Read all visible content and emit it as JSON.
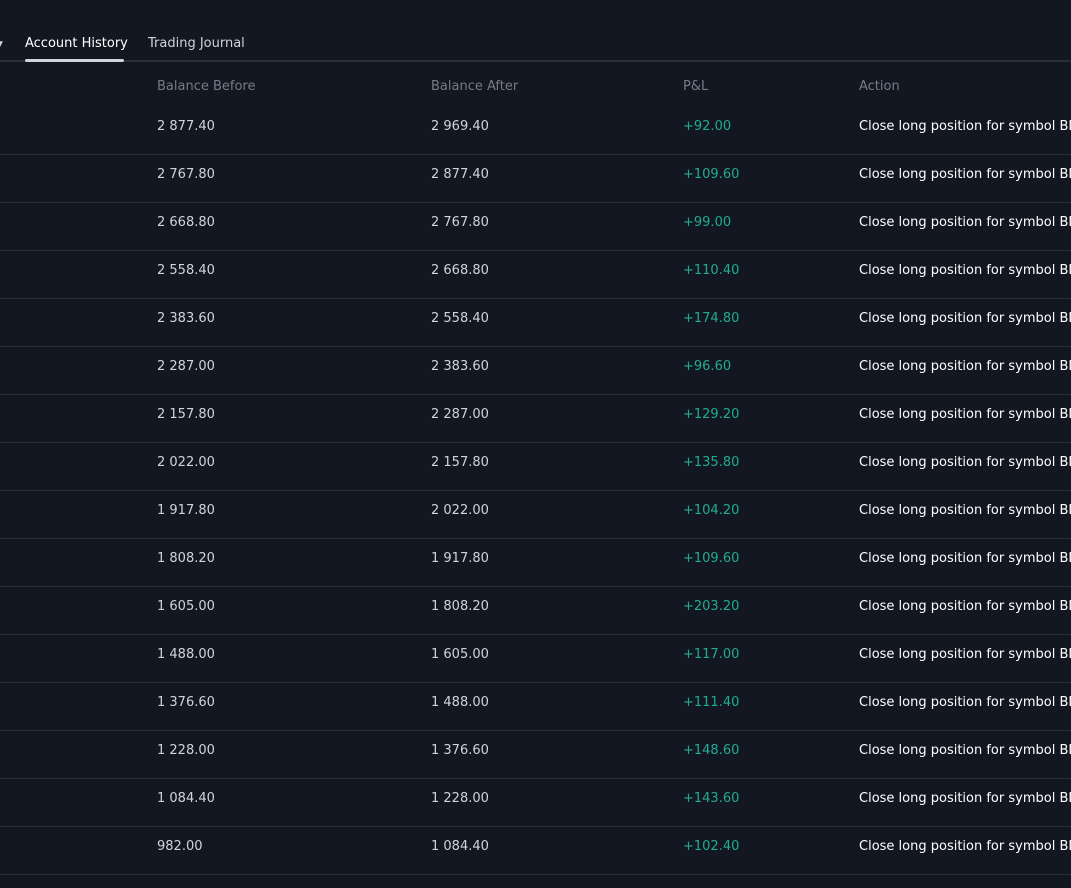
{
  "tabs": {
    "account_history": "Account History",
    "trading_journal": "Trading Journal"
  },
  "colors": {
    "background": "#131722",
    "profit": "#22ab94",
    "header_text": "#787b86",
    "divider": "#2a2e39"
  },
  "table": {
    "columns": {
      "balance_before": "Balance Before",
      "balance_after": "Balance After",
      "pnl": "P&L",
      "action": "Action"
    },
    "rows": [
      {
        "before": "2 877.40",
        "after": "2 969.40",
        "pnl": "+92.00",
        "action": "Close long position for symbol BLA"
      },
      {
        "before": "2 767.80",
        "after": "2 877.40",
        "pnl": "+109.60",
        "action": "Close long position for symbol BLA"
      },
      {
        "before": "2 668.80",
        "after": "2 767.80",
        "pnl": "+99.00",
        "action": "Close long position for symbol BLA"
      },
      {
        "before": "2 558.40",
        "after": "2 668.80",
        "pnl": "+110.40",
        "action": "Close long position for symbol BLA"
      },
      {
        "before": "2 383.60",
        "after": "2 558.40",
        "pnl": "+174.80",
        "action": "Close long position for symbol BLA"
      },
      {
        "before": "2 287.00",
        "after": "2 383.60",
        "pnl": "+96.60",
        "action": "Close long position for symbol BLA"
      },
      {
        "before": "2 157.80",
        "after": "2 287.00",
        "pnl": "+129.20",
        "action": "Close long position for symbol BLA"
      },
      {
        "before": "2 022.00",
        "after": "2 157.80",
        "pnl": "+135.80",
        "action": "Close long position for symbol BLA"
      },
      {
        "before": "1 917.80",
        "after": "2 022.00",
        "pnl": "+104.20",
        "action": "Close long position for symbol BLA"
      },
      {
        "before": "1 808.20",
        "after": "1 917.80",
        "pnl": "+109.60",
        "action": "Close long position for symbol BLA"
      },
      {
        "before": "1 605.00",
        "after": "1 808.20",
        "pnl": "+203.20",
        "action": "Close long position for symbol BLA"
      },
      {
        "before": "1 488.00",
        "after": "1 605.00",
        "pnl": "+117.00",
        "action": "Close long position for symbol BLA"
      },
      {
        "before": "1 376.60",
        "after": "1 488.00",
        "pnl": "+111.40",
        "action": "Close long position for symbol BLA"
      },
      {
        "before": "1 228.00",
        "after": "1 376.60",
        "pnl": "+148.60",
        "action": "Close long position for symbol BLA"
      },
      {
        "before": "1 084.40",
        "after": "1 228.00",
        "pnl": "+143.60",
        "action": "Close long position for symbol BLA"
      },
      {
        "before": "982.00",
        "after": "1 084.40",
        "pnl": "+102.40",
        "action": "Close long position for symbol BLA"
      }
    ]
  }
}
